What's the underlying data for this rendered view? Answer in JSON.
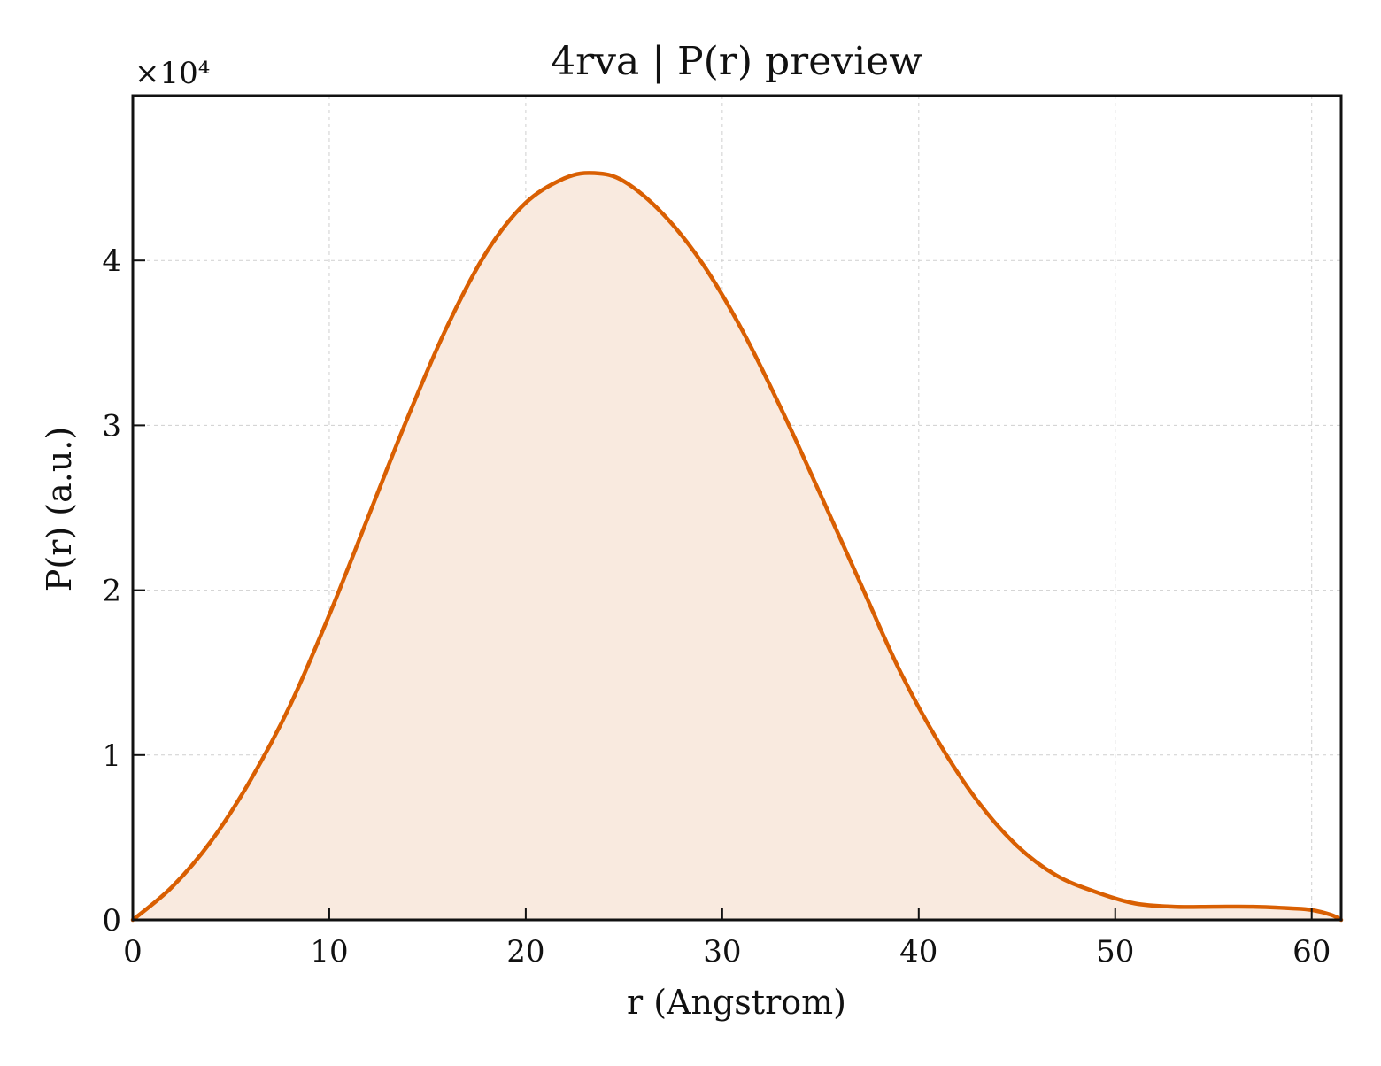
{
  "chart_data": {
    "type": "area",
    "title": "4rva | P(r) preview",
    "xlabel": "r (Angstrom)",
    "ylabel": "P(r) (a.u.)",
    "y_multiplier_label": "×10⁴",
    "xlim": [
      0,
      61.5
    ],
    "ylim": [
      0,
      5
    ],
    "xticks": [
      0,
      10,
      20,
      30,
      40,
      50,
      60
    ],
    "yticks": [
      0,
      1,
      2,
      3,
      4
    ],
    "grid": true,
    "line_color": "#d95f02",
    "fill_color": "#f9eadf",
    "series": [
      {
        "x": [
          0,
          2,
          4,
          6,
          8,
          10,
          12,
          14,
          16,
          18,
          20,
          22,
          23.5,
          25,
          27,
          29,
          31,
          33,
          35,
          37,
          39,
          41,
          43,
          45,
          47,
          49,
          51,
          53,
          55,
          57,
          59,
          60,
          61,
          61.5
        ],
        "values": [
          0,
          0.2,
          0.48,
          0.85,
          1.3,
          1.85,
          2.45,
          3.05,
          3.6,
          4.05,
          4.35,
          4.5,
          4.53,
          4.48,
          4.28,
          3.98,
          3.58,
          3.1,
          2.58,
          2.05,
          1.52,
          1.08,
          0.72,
          0.45,
          0.27,
          0.17,
          0.1,
          0.08,
          0.08,
          0.08,
          0.07,
          0.06,
          0.03,
          0
        ]
      }
    ]
  }
}
